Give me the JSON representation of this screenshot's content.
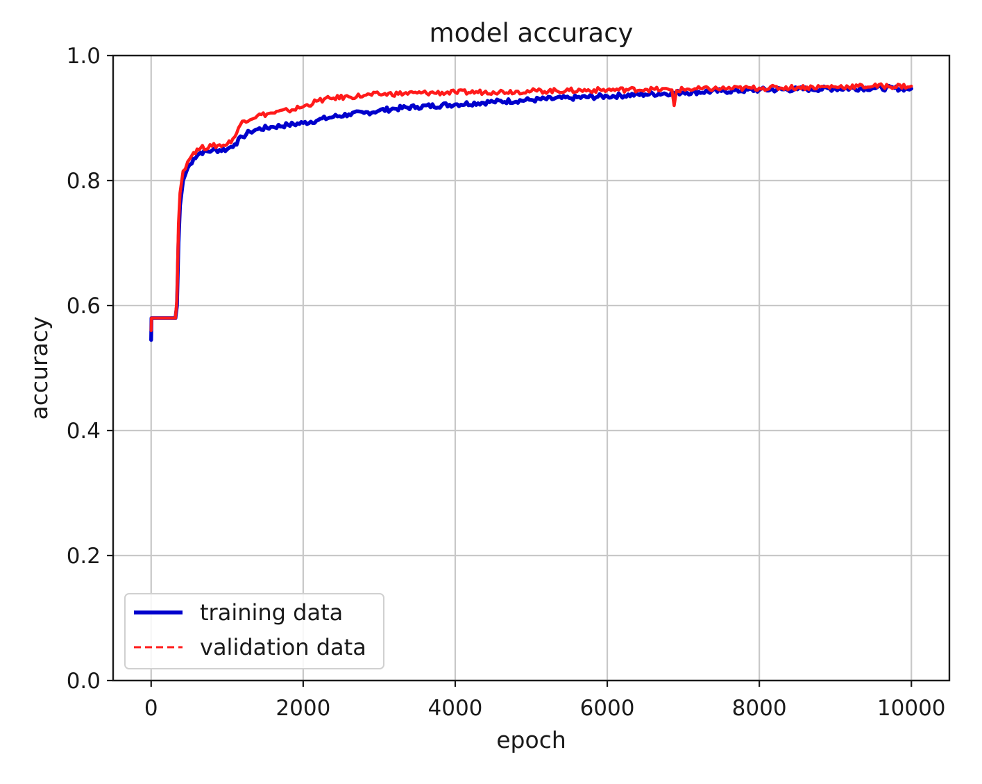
{
  "chart_data": {
    "type": "line",
    "title": "model accuracy",
    "xlabel": "epoch",
    "ylabel": "accuracy",
    "xlim": [
      -500,
      10500
    ],
    "ylim": [
      0.0,
      1.0
    ],
    "xticks": [
      0,
      2000,
      4000,
      6000,
      8000,
      10000
    ],
    "xtick_labels": [
      "0",
      "2000",
      "4000",
      "6000",
      "8000",
      "10000"
    ],
    "yticks": [
      0.0,
      0.2,
      0.4,
      0.6,
      0.8,
      1.0
    ],
    "ytick_labels": [
      "0.0",
      "0.2",
      "0.4",
      "0.6",
      "0.8",
      "1.0"
    ],
    "grid": true,
    "legend_position": "lower-left",
    "series": [
      {
        "name": "training data",
        "color": "#0000cc",
        "style": "solid",
        "x": [
          0,
          5,
          20,
          320,
          340,
          360,
          380,
          420,
          480,
          560,
          650,
          800,
          1000,
          1100,
          1200,
          1300,
          1400,
          1600,
          1800,
          2000,
          2200,
          2400,
          2600,
          2800,
          3000,
          3200,
          3500,
          4000,
          4500,
          5000,
          5500,
          6000,
          6500,
          7000,
          7500,
          8000,
          8500,
          9000,
          9500,
          10000
        ],
        "y": [
          0.545,
          0.58,
          0.58,
          0.58,
          0.6,
          0.7,
          0.76,
          0.8,
          0.82,
          0.835,
          0.845,
          0.848,
          0.85,
          0.858,
          0.87,
          0.878,
          0.882,
          0.886,
          0.889,
          0.892,
          0.897,
          0.902,
          0.906,
          0.908,
          0.912,
          0.915,
          0.918,
          0.922,
          0.926,
          0.929,
          0.932,
          0.935,
          0.938,
          0.941,
          0.943,
          0.945,
          0.946,
          0.947,
          0.948,
          0.947
        ]
      },
      {
        "name": "validation data",
        "color": "#ff1a1a",
        "style": "dashed",
        "x": [
          0,
          5,
          20,
          320,
          340,
          360,
          380,
          420,
          480,
          560,
          650,
          800,
          1000,
          1100,
          1200,
          1400,
          1600,
          1800,
          2000,
          2200,
          2400,
          2600,
          2800,
          3000,
          3500,
          4000,
          4500,
          5000,
          5500,
          6000,
          6500,
          6850,
          6880,
          6910,
          7000,
          7500,
          8000,
          8500,
          9000,
          9500,
          10000
        ],
        "y": [
          0.56,
          0.58,
          0.58,
          0.58,
          0.61,
          0.73,
          0.78,
          0.815,
          0.83,
          0.845,
          0.852,
          0.855,
          0.858,
          0.87,
          0.895,
          0.904,
          0.908,
          0.912,
          0.918,
          0.928,
          0.932,
          0.934,
          0.936,
          0.938,
          0.94,
          0.941,
          0.942,
          0.943,
          0.944,
          0.945,
          0.946,
          0.945,
          0.92,
          0.944,
          0.946,
          0.947,
          0.948,
          0.949,
          0.95,
          0.951,
          0.951
        ]
      }
    ]
  }
}
